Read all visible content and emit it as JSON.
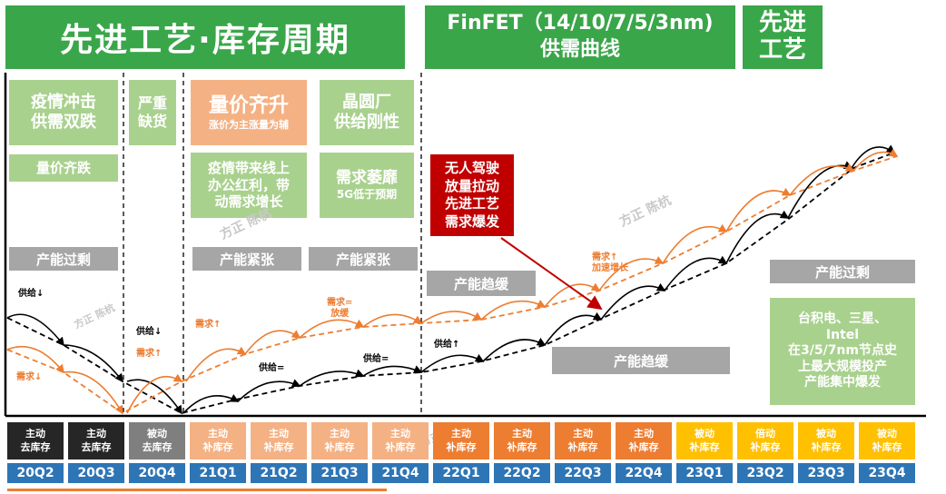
{
  "header": {
    "title": "先进工艺·库存周期",
    "finfet_line1": "FinFET（14/10/7/5/3nm)",
    "finfet_line2": "供需曲线",
    "adv_line1": "先进",
    "adv_line2": "工艺"
  },
  "phases": {
    "p1_l1": "疫情冲击",
    "p1_l2": "供需双跌",
    "p1_sub": "量价齐跌",
    "p2_l1": "严重",
    "p2_l2": "缺货",
    "p3_title": "量价齐升",
    "p3_sub": "涨价为主涨量为辅",
    "p3_text_l1": "疫情带来线上",
    "p3_text_l2": "办公红利，带",
    "p3_text_l3": "动需求增长",
    "p4_l1": "晶圆厂",
    "p4_l2": "供给刚性",
    "p4_sub_l1": "需求萎靡",
    "p4_sub_l2": "5G低于预期"
  },
  "red_callout": {
    "l1": "无人驾驶",
    "l2": "放量拉动",
    "l3": "先进工艺",
    "l4": "需求爆发"
  },
  "capacity": {
    "surplus_left": "产能过剩",
    "tight_1": "产能紧张",
    "tight_2": "产能紧张",
    "easing_1": "产能趋缓",
    "easing_2": "产能趋缓",
    "surplus_right": "产能过剩"
  },
  "green_note": {
    "l1": "台积电、三星、",
    "l2": "Intel",
    "l3": "在3/5/7nm节点史",
    "l4": "上最大规模投产",
    "l5": "产能集中爆发"
  },
  "annotations": {
    "supply_down_1": "供给↓",
    "demand_down": "需求↓",
    "supply_down_2": "供给↓",
    "demand_up_1": "需求↑",
    "demand_up_2": "需求↑",
    "supply_eq_1": "供给=",
    "supply_eq_2": "供给=",
    "demand_eq_l1": "需求=",
    "demand_eq_l2": "放缓",
    "supply_up": "供给↑",
    "demand_acc_l1": "需求↑",
    "demand_acc_l2": "加速增长"
  },
  "watermark": {
    "text": "方正 陈杭"
  },
  "stages": [
    {
      "l1": "主动",
      "l2": "去库存",
      "color": "#262626"
    },
    {
      "l1": "主动",
      "l2": "去库存",
      "color": "#262626"
    },
    {
      "l1": "被动",
      "l2": "去库存",
      "color": "#7f7f7f"
    },
    {
      "l1": "主动",
      "l2": "补库存",
      "color": "#f4b183"
    },
    {
      "l1": "主动",
      "l2": "补库存",
      "color": "#f4b183"
    },
    {
      "l1": "主动",
      "l2": "补库存",
      "color": "#f4b183"
    },
    {
      "l1": "主动",
      "l2": "补库存",
      "color": "#f4b183"
    },
    {
      "l1": "主动",
      "l2": "补库存",
      "color": "#ed7d31"
    },
    {
      "l1": "主动",
      "l2": "补库存",
      "color": "#ed7d31"
    },
    {
      "l1": "主动",
      "l2": "补库存",
      "color": "#ed7d31"
    },
    {
      "l1": "主动",
      "l2": "补库存",
      "color": "#ed7d31"
    },
    {
      "l1": "被动",
      "l2": "补库存",
      "color": "#ffc000"
    },
    {
      "l1": "倍动",
      "l2": "补库存",
      "color": "#ffc000"
    },
    {
      "l1": "被动",
      "l2": "补库存",
      "color": "#ffc000"
    },
    {
      "l1": "被动",
      "l2": "补库存",
      "color": "#ffc000"
    }
  ],
  "quarters": [
    "20Q2",
    "20Q3",
    "20Q4",
    "21Q1",
    "21Q2",
    "21Q3",
    "21Q4",
    "22Q1",
    "22Q2",
    "22Q3",
    "22Q4",
    "23Q1",
    "23Q2",
    "23Q3",
    "23Q4"
  ],
  "colors": {
    "supply": "#000000",
    "demand": "#ed7d31",
    "callout_arrow": "#c00000"
  }
}
